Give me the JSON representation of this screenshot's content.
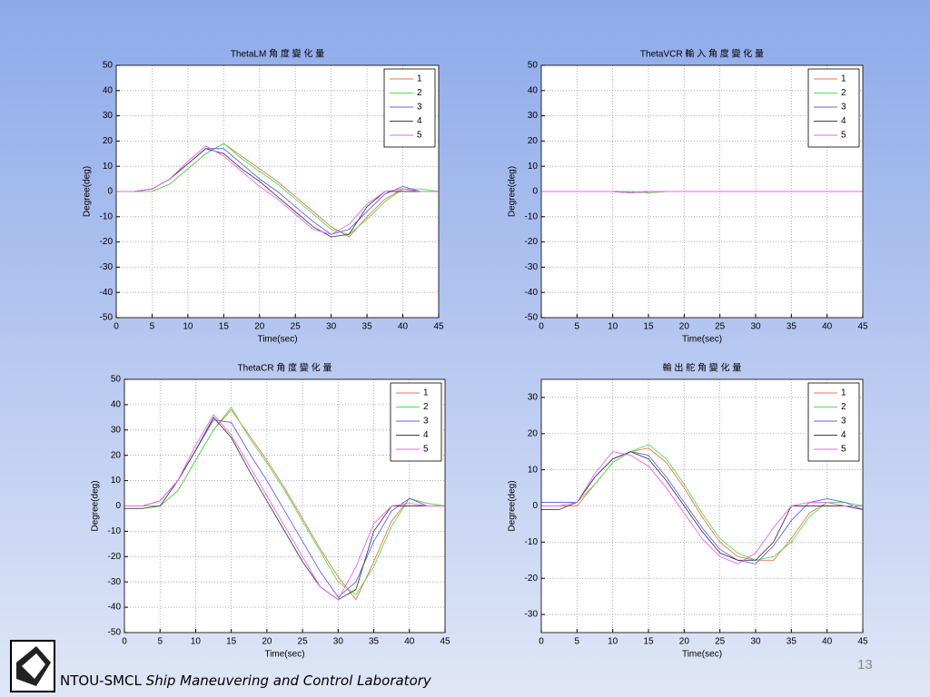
{
  "chart_data": [
    {
      "type": "line",
      "title": "ThetaLM 角 度 變 化 量",
      "xlabel": "Time(sec)",
      "ylabel": "Degree(deg)",
      "x": [
        0,
        2.5,
        5,
        7.5,
        10,
        12.5,
        15,
        17.5,
        20,
        22.5,
        25,
        27.5,
        30,
        32.5,
        35,
        37.5,
        40,
        42.5,
        45
      ],
      "xlim": [
        0,
        45
      ],
      "xticks": [
        0,
        5,
        10,
        15,
        20,
        25,
        30,
        35,
        40,
        45
      ],
      "ylim": [
        -50,
        50
      ],
      "yticks": [
        -50,
        -40,
        -30,
        -20,
        -10,
        0,
        10,
        20,
        30,
        40,
        50
      ],
      "grid": true,
      "legend": "upper right",
      "series": [
        {
          "name": "1",
          "color": "#f07050",
          "values": [
            0,
            0,
            0,
            3,
            9,
            15,
            19,
            14,
            9,
            4,
            -2,
            -8,
            -14,
            -18,
            -10,
            -3,
            1,
            0,
            0
          ]
        },
        {
          "name": "2",
          "color": "#50e050",
          "values": [
            0,
            0,
            0,
            3,
            9,
            15,
            19,
            13,
            8,
            3,
            -3,
            -9,
            -15,
            -17,
            -11,
            -4,
            1,
            1,
            0
          ]
        },
        {
          "name": "3",
          "color": "#6060f0",
          "values": [
            0,
            0,
            1,
            5,
            11,
            17,
            17,
            11,
            5,
            0,
            -6,
            -12,
            -17,
            -15,
            -8,
            -1,
            2,
            0,
            0
          ]
        },
        {
          "name": "4",
          "color": "#404040",
          "values": [
            0,
            0,
            1,
            5,
            11,
            17,
            15,
            9,
            4,
            -2,
            -8,
            -14,
            -18,
            -17,
            -6,
            0,
            0,
            0,
            0
          ]
        },
        {
          "name": "5",
          "color": "#f060f0",
          "values": [
            0,
            0,
            1,
            5,
            12,
            18,
            14,
            8,
            2,
            -3,
            -9,
            -15,
            -17,
            -13,
            -5,
            0,
            1,
            0,
            0
          ]
        }
      ]
    },
    {
      "type": "line",
      "title": "ThetaVCR 輸 入 角 度 變 化 量",
      "xlabel": "Time(sec)",
      "ylabel": "Degree(deg)",
      "x": [
        0,
        2.5,
        5,
        7.5,
        10,
        12.5,
        15,
        17.5,
        20,
        22.5,
        25,
        27.5,
        30,
        32.5,
        35,
        37.5,
        40,
        42.5,
        45
      ],
      "xlim": [
        0,
        45
      ],
      "xticks": [
        0,
        5,
        10,
        15,
        20,
        25,
        30,
        35,
        40,
        45
      ],
      "ylim": [
        -50,
        50
      ],
      "yticks": [
        -50,
        -40,
        -30,
        -20,
        -10,
        0,
        10,
        20,
        30,
        40,
        50
      ],
      "grid": true,
      "legend": "upper right",
      "series": [
        {
          "name": "1",
          "color": "#f07050",
          "values": [
            0,
            0,
            0,
            0,
            0,
            0,
            -0.5,
            0,
            0,
            0,
            0,
            0,
            0,
            0,
            0,
            0,
            0,
            0,
            0
          ]
        },
        {
          "name": "2",
          "color": "#50e050",
          "values": [
            0,
            0,
            0,
            0,
            0,
            0,
            -0.5,
            0,
            0,
            0,
            0,
            0,
            0,
            0,
            0,
            0,
            0,
            0,
            0
          ]
        },
        {
          "name": "3",
          "color": "#6060f0",
          "values": [
            0,
            0,
            0,
            0,
            0,
            -0.5,
            0,
            0,
            0,
            0,
            0,
            0,
            0,
            0,
            0,
            0,
            0,
            0,
            0
          ]
        },
        {
          "name": "4",
          "color": "#404040",
          "values": [
            0,
            0,
            0,
            0,
            0,
            -0.5,
            0,
            0,
            0,
            0,
            0,
            0,
            0,
            0,
            0,
            0,
            0,
            0,
            0
          ]
        },
        {
          "name": "5",
          "color": "#f060f0",
          "values": [
            0,
            0,
            0,
            0,
            0,
            -0.5,
            0,
            0,
            0,
            0,
            0,
            0,
            0,
            0,
            0,
            0,
            0,
            0,
            0
          ]
        }
      ]
    },
    {
      "type": "line",
      "title": "ThetaCR 角 度 變 化 量",
      "xlabel": "Time(sec)",
      "ylabel": "Degree(deg)",
      "x": [
        0,
        2.5,
        5,
        7.5,
        10,
        12.5,
        15,
        17.5,
        20,
        22.5,
        25,
        27.5,
        30,
        32.5,
        35,
        37.5,
        40,
        42.5,
        45
      ],
      "xlim": [
        0,
        45
      ],
      "xticks": [
        0,
        5,
        10,
        15,
        20,
        25,
        30,
        35,
        40,
        45
      ],
      "ylim": [
        -50,
        50
      ],
      "yticks": [
        -50,
        -40,
        -30,
        -20,
        -10,
        0,
        10,
        20,
        30,
        40,
        50
      ],
      "grid": true,
      "legend": "upper right",
      "series": [
        {
          "name": "1",
          "color": "#f07050",
          "values": [
            0,
            0,
            0,
            6,
            18,
            30,
            38,
            28,
            18,
            7,
            -5,
            -17,
            -28,
            -37,
            -22,
            -6,
            3,
            1,
            0
          ]
        },
        {
          "name": "2",
          "color": "#50e050",
          "values": [
            0,
            0,
            0,
            6,
            18,
            30,
            39,
            27,
            17,
            6,
            -6,
            -18,
            -30,
            -35,
            -24,
            -8,
            3,
            1,
            0
          ]
        },
        {
          "name": "3",
          "color": "#6060f0",
          "values": [
            0,
            0,
            2,
            10,
            22,
            34,
            33,
            21,
            10,
            -2,
            -14,
            -26,
            -36,
            -30,
            -14,
            -2,
            3,
            0,
            0
          ]
        },
        {
          "name": "4",
          "color": "#404040",
          "values": [
            -1,
            -1,
            0,
            10,
            22,
            35,
            27,
            14,
            2,
            -10,
            -22,
            -32,
            -37,
            -33,
            -10,
            0,
            0,
            0,
            0
          ]
        },
        {
          "name": "5",
          "color": "#f060f0",
          "values": [
            0,
            0,
            2,
            10,
            24,
            36,
            28,
            16,
            4,
            -8,
            -20,
            -32,
            -37,
            -24,
            -7,
            0,
            1,
            0,
            0
          ]
        }
      ]
    },
    {
      "type": "line",
      "title": "輸 出 舵 角 變 化 量",
      "xlabel": "Time(sec)",
      "ylabel": "Degree(deg)",
      "x": [
        0,
        2.5,
        5,
        7.5,
        10,
        12.5,
        15,
        17.5,
        20,
        22.5,
        25,
        27.5,
        30,
        32.5,
        35,
        37.5,
        40,
        42.5,
        45
      ],
      "xlim": [
        0,
        45
      ],
      "xticks": [
        0,
        5,
        10,
        15,
        20,
        25,
        30,
        35,
        40,
        45
      ],
      "ylim": [
        -35,
        35
      ],
      "yticks": [
        -30,
        -20,
        -10,
        0,
        10,
        20,
        30
      ],
      "grid": true,
      "legend": "upper right",
      "series": [
        {
          "name": "1",
          "color": "#f07050",
          "values": [
            0,
            0,
            0,
            6,
            12,
            15,
            16,
            12,
            5,
            -3,
            -10,
            -14,
            -15,
            -15,
            -9,
            -2,
            1,
            0,
            0
          ]
        },
        {
          "name": "2",
          "color": "#50e050",
          "values": [
            1,
            1,
            1,
            6,
            12,
            15,
            17,
            13,
            6,
            -2,
            -9,
            -13,
            -15,
            -14,
            -10,
            -3,
            1,
            1,
            0
          ]
        },
        {
          "name": "3",
          "color": "#6060f0",
          "values": [
            1,
            1,
            1,
            8,
            13,
            15,
            14,
            8,
            1,
            -6,
            -12,
            -15,
            -16,
            -11,
            -4,
            1,
            2,
            1,
            -1
          ]
        },
        {
          "name": "4",
          "color": "#404040",
          "values": [
            -1,
            -1,
            1,
            8,
            13,
            15,
            13,
            7,
            0,
            -7,
            -13,
            -15,
            -15,
            -10,
            0,
            0,
            0,
            0,
            -1
          ]
        },
        {
          "name": "5",
          "color": "#f060f0",
          "values": [
            0,
            0,
            1,
            9,
            15,
            14,
            11,
            5,
            -2,
            -9,
            -14,
            -16,
            -13,
            -6,
            0,
            1,
            1,
            0,
            0
          ]
        }
      ]
    }
  ],
  "footer": {
    "org": "NTOU-SMCL",
    "lab": "Ship Maneuvering and Control Laboratory"
  },
  "page_number": "13"
}
